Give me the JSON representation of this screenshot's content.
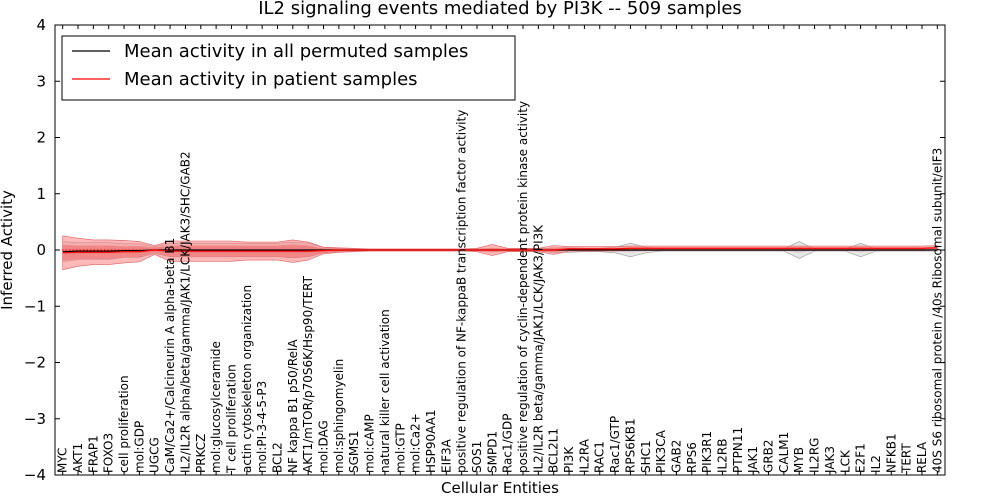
{
  "chart_data": {
    "type": "line",
    "title": "IL2 signaling events mediated by PI3K -- 509 samples",
    "xlabel": "Cellular Entities",
    "ylabel": "Inferred Activity",
    "ylim": [
      -4,
      4
    ],
    "yticks": [
      -4,
      -3,
      -2,
      -1,
      0,
      1,
      2,
      3,
      4
    ],
    "ytick_labels": [
      "−4",
      "−3",
      "−2",
      "−1",
      "0",
      "1",
      "2",
      "3",
      "4"
    ],
    "legend_position": "top-left",
    "categories": [
      "MYC",
      "AKT1",
      "FRAP1",
      "FOXO3",
      "cell proliferation",
      "mol:GDP",
      "UGCG",
      "CaM/Ca2+/Calcineurin A alpha-beta B1",
      "IL2/IL2R alpha/beta/gamma/JAK1/LCK/JAK3/SHC/GAB2",
      "PRKCZ",
      "mol:glucosylceramide",
      "T cell proliferation",
      "actin cytoskeleton organization",
      "mol:PI-3-4-5-P3",
      "BCL2",
      "NF kappa B1 p50/RelA",
      "AKT1/mTOR/p70S6K/Hsp90/TERT",
      "mol:DAG",
      "mol:sphingomyelin",
      "SGMS1",
      "mol:cAMP",
      "natural killer cell activation",
      "mol:GTP",
      "mol:Ca2+",
      "HSP90AA1",
      "EIF3A",
      "positive regulation of NF-kappaB transcription factor activity",
      "SOS1",
      "SMPD1",
      "Rac1/GDP",
      "positive regulation of cyclin-dependent protein kinase activity",
      "IL2/IL2R beta/gamma/JAK1/LCK/JAK3/PI3K",
      "BCL2L1",
      "PI3K",
      "IL2RA",
      "RAC1",
      "Rac1/GTP",
      "RPS6KB1",
      "SHC1",
      "PIK3CA",
      "GAB2",
      "RPS6",
      "PIK3R1",
      "IL2RB",
      "PTPN11",
      "JAK1",
      "GRB2",
      "CALM1",
      "MYB",
      "IL2RG",
      "JAK3",
      "LCK",
      "E2F1",
      "IL2",
      "NFKB1",
      "TERT",
      "RELA",
      "40S S6 ribosomal protein /40s Ribosomal subunit/eIF3"
    ],
    "series": [
      {
        "name": "Mean activity in all permuted samples",
        "color": "#000000",
        "values": [
          -0.03,
          -0.02,
          -0.02,
          -0.02,
          -0.01,
          -0.01,
          0.0,
          0.0,
          0.0,
          0.0,
          0.0,
          0.0,
          0.0,
          0.0,
          0.0,
          0.0,
          0.0,
          0.0,
          0.0,
          0.0,
          0.0,
          0.0,
          0.0,
          0.0,
          0.0,
          0.0,
          0.0,
          0.0,
          0.0,
          0.0,
          0.0,
          0.0,
          0.0,
          0.0,
          0.0,
          0.0,
          0.0,
          0.0,
          0.0,
          0.0,
          0.0,
          0.0,
          0.0,
          0.0,
          0.0,
          0.0,
          0.0,
          0.0,
          0.0,
          0.0,
          0.0,
          0.0,
          0.0,
          0.0,
          0.0,
          0.0,
          0.0,
          0.0
        ],
        "band_inner": [
          0.05,
          0.05,
          0.05,
          0.05,
          0.05,
          0.05,
          0.03,
          0.06,
          0.06,
          0.06,
          0.06,
          0.06,
          0.06,
          0.06,
          0.06,
          0.06,
          0.06,
          0.03,
          0.02,
          0.01,
          0.01,
          0.01,
          0.01,
          0.01,
          0.01,
          0.01,
          0.01,
          0.01,
          0.01,
          0.01,
          0.01,
          0.01,
          0.02,
          0.02,
          0.02,
          0.02,
          0.02,
          0.04,
          0.02,
          0.01,
          0.01,
          0.01,
          0.01,
          0.01,
          0.01,
          0.01,
          0.01,
          0.01,
          0.05,
          0.01,
          0.01,
          0.01,
          0.04,
          0.01,
          0.01,
          0.01,
          0.01,
          0.01
        ],
        "band_outer": [
          0.18,
          0.15,
          0.15,
          0.15,
          0.12,
          0.12,
          0.06,
          0.12,
          0.12,
          0.12,
          0.12,
          0.12,
          0.12,
          0.12,
          0.12,
          0.14,
          0.12,
          0.05,
          0.03,
          0.02,
          0.01,
          0.01,
          0.01,
          0.01,
          0.01,
          0.01,
          0.01,
          0.02,
          0.02,
          0.02,
          0.02,
          0.02,
          0.04,
          0.04,
          0.03,
          0.03,
          0.05,
          0.12,
          0.05,
          0.02,
          0.02,
          0.02,
          0.02,
          0.02,
          0.02,
          0.02,
          0.02,
          0.02,
          0.15,
          0.02,
          0.02,
          0.02,
          0.12,
          0.02,
          0.02,
          0.02,
          0.02,
          0.02
        ]
      },
      {
        "name": "Mean activity in patient samples",
        "color": "#ff0000",
        "values": [
          -0.05,
          -0.04,
          -0.04,
          -0.04,
          -0.03,
          -0.03,
          0.0,
          -0.02,
          -0.02,
          -0.02,
          -0.02,
          -0.02,
          -0.02,
          -0.02,
          -0.02,
          -0.02,
          -0.02,
          -0.01,
          0.0,
          0.0,
          0.0,
          0.0,
          0.0,
          0.0,
          0.0,
          0.0,
          0.0,
          0.0,
          0.0,
          0.0,
          0.0,
          0.0,
          0.0,
          0.02,
          0.02,
          0.02,
          0.02,
          0.03,
          0.03,
          0.03,
          0.03,
          0.03,
          0.03,
          0.03,
          0.03,
          0.03,
          0.03,
          0.03,
          0.03,
          0.03,
          0.03,
          0.03,
          0.03,
          0.03,
          0.03,
          0.03,
          0.03,
          0.04
        ],
        "band_inner": [
          0.14,
          0.12,
          0.12,
          0.12,
          0.1,
          0.1,
          0.05,
          0.1,
          0.1,
          0.1,
          0.1,
          0.1,
          0.1,
          0.1,
          0.1,
          0.12,
          0.1,
          0.04,
          0.03,
          0.02,
          0.01,
          0.01,
          0.01,
          0.01,
          0.01,
          0.01,
          0.01,
          0.02,
          0.04,
          0.02,
          0.02,
          0.02,
          0.04,
          0.02,
          0.02,
          0.02,
          0.02,
          0.02,
          0.02,
          0.02,
          0.02,
          0.02,
          0.02,
          0.02,
          0.02,
          0.02,
          0.02,
          0.02,
          0.02,
          0.02,
          0.02,
          0.02,
          0.02,
          0.02,
          0.02,
          0.02,
          0.02,
          0.02
        ],
        "band_outer": [
          0.3,
          0.25,
          0.22,
          0.22,
          0.2,
          0.18,
          0.08,
          0.18,
          0.18,
          0.18,
          0.18,
          0.18,
          0.16,
          0.16,
          0.16,
          0.2,
          0.16,
          0.06,
          0.04,
          0.03,
          0.02,
          0.02,
          0.02,
          0.02,
          0.02,
          0.02,
          0.02,
          0.03,
          0.1,
          0.03,
          0.03,
          0.03,
          0.08,
          0.04,
          0.04,
          0.04,
          0.04,
          0.04,
          0.04,
          0.04,
          0.04,
          0.04,
          0.04,
          0.04,
          0.04,
          0.04,
          0.04,
          0.04,
          0.04,
          0.04,
          0.04,
          0.04,
          0.04,
          0.04,
          0.04,
          0.04,
          0.04,
          0.04
        ]
      }
    ],
    "reference_line": {
      "y": 0,
      "style": "dotted",
      "color": "#ff0000"
    }
  }
}
